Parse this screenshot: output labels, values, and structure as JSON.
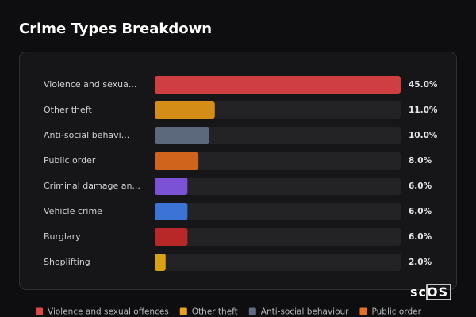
{
  "chart_data": {
    "type": "bar",
    "orientation": "horizontal",
    "title": "Crime Types Breakdown",
    "categories": [
      "Violence and sexua...",
      "Other theft",
      "Anti-social behavi...",
      "Public order",
      "Criminal damage an...",
      "Vehicle crime",
      "Burglary",
      "Shoplifting"
    ],
    "values": [
      45,
      11,
      10,
      8,
      6,
      6,
      6,
      2
    ],
    "value_labels": [
      "45.0%",
      "11.0%",
      "10.0%",
      "8.0%",
      "6.0%",
      "6.0%",
      "6.0%",
      "2.0%"
    ],
    "colors": [
      "#cf3f41",
      "#d48d17",
      "#5c697c",
      "#d0641c",
      "#7b52d4",
      "#3b74d4",
      "#b82828",
      "#d9a212"
    ],
    "xlim": [
      0,
      45
    ],
    "legend": [
      {
        "name": "Violence and sexual offences",
        "color": "#e04848"
      },
      {
        "name": "Other theft",
        "color": "#e8a21e"
      },
      {
        "name": "Anti-social behaviour",
        "color": "#5e6b80"
      },
      {
        "name": "Public order",
        "color": "#e8701e"
      }
    ],
    "watermark": "scOS"
  }
}
